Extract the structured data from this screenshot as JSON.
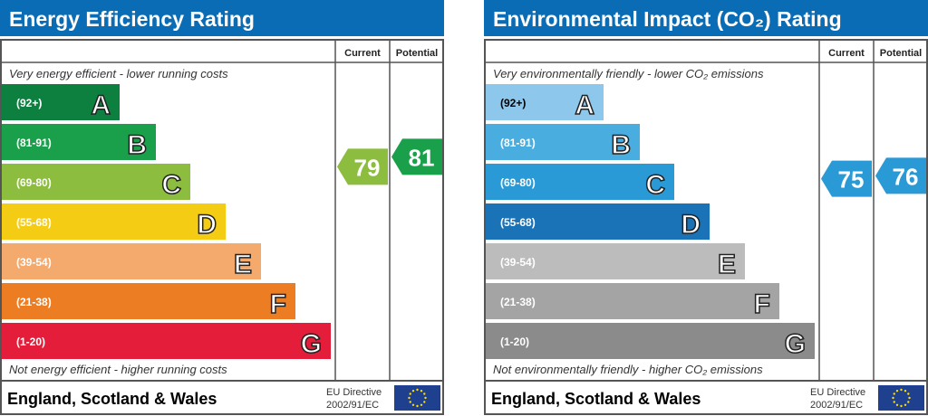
{
  "chart_data": [
    {
      "type": "bar",
      "title": "Energy Efficiency Rating",
      "top_note": "Very energy efficient - lower running costs",
      "bottom_note": "Not energy efficient - higher running costs",
      "columns": {
        "current": "Current",
        "potential": "Potential"
      },
      "bands": [
        {
          "letter": "A",
          "range": "(92+)",
          "color": "#0d8040"
        },
        {
          "letter": "B",
          "range": "(81-91)",
          "color": "#1aa04a"
        },
        {
          "letter": "C",
          "range": "(69-80)",
          "color": "#8cbd3f"
        },
        {
          "letter": "D",
          "range": "(55-68)",
          "color": "#f5cc14"
        },
        {
          "letter": "E",
          "range": "(39-54)",
          "color": "#f4aa6d"
        },
        {
          "letter": "F",
          "range": "(21-38)",
          "color": "#ed7d22"
        },
        {
          "letter": "G",
          "range": "(1-20)",
          "color": "#e41e3a"
        }
      ],
      "current": {
        "value": 79,
        "color": "#8cbd3f"
      },
      "potential": {
        "value": 81,
        "color": "#1aa04a"
      },
      "footer": {
        "region": "England, Scotland & Wales",
        "directive_line1": "EU Directive",
        "directive_line2": "2002/91/EC"
      }
    },
    {
      "type": "bar",
      "title": "Environmental Impact (CO₂) Rating",
      "top_note": "Very environmentally friendly - lower CO₂ emissions",
      "bottom_note": "Not environmentally friendly - higher CO₂ emissions",
      "columns": {
        "current": "Current",
        "potential": "Potential"
      },
      "bands": [
        {
          "letter": "A",
          "range": "(92+)",
          "color": "#8dc7eb"
        },
        {
          "letter": "B",
          "range": "(81-91)",
          "color": "#49ade0"
        },
        {
          "letter": "C",
          "range": "(69-80)",
          "color": "#2a9ad6"
        },
        {
          "letter": "D",
          "range": "(55-68)",
          "color": "#1a72b7"
        },
        {
          "letter": "E",
          "range": "(39-54)",
          "color": "#bcbcbc"
        },
        {
          "letter": "F",
          "range": "(21-38)",
          "color": "#a4a4a4"
        },
        {
          "letter": "G",
          "range": "(1-20)",
          "color": "#8b8b8b"
        }
      ],
      "current": {
        "value": 75,
        "color": "#2a9ad6"
      },
      "potential": {
        "value": 76,
        "color": "#2a9ad6"
      },
      "footer": {
        "region": "England, Scotland & Wales",
        "directive_line1": "EU Directive",
        "directive_line2": "2002/91/EC"
      }
    }
  ],
  "colors": {
    "title_bar": "#0a6cb4",
    "eu_flag": "#1f3f8f",
    "eu_stars": "#ffdd00"
  }
}
